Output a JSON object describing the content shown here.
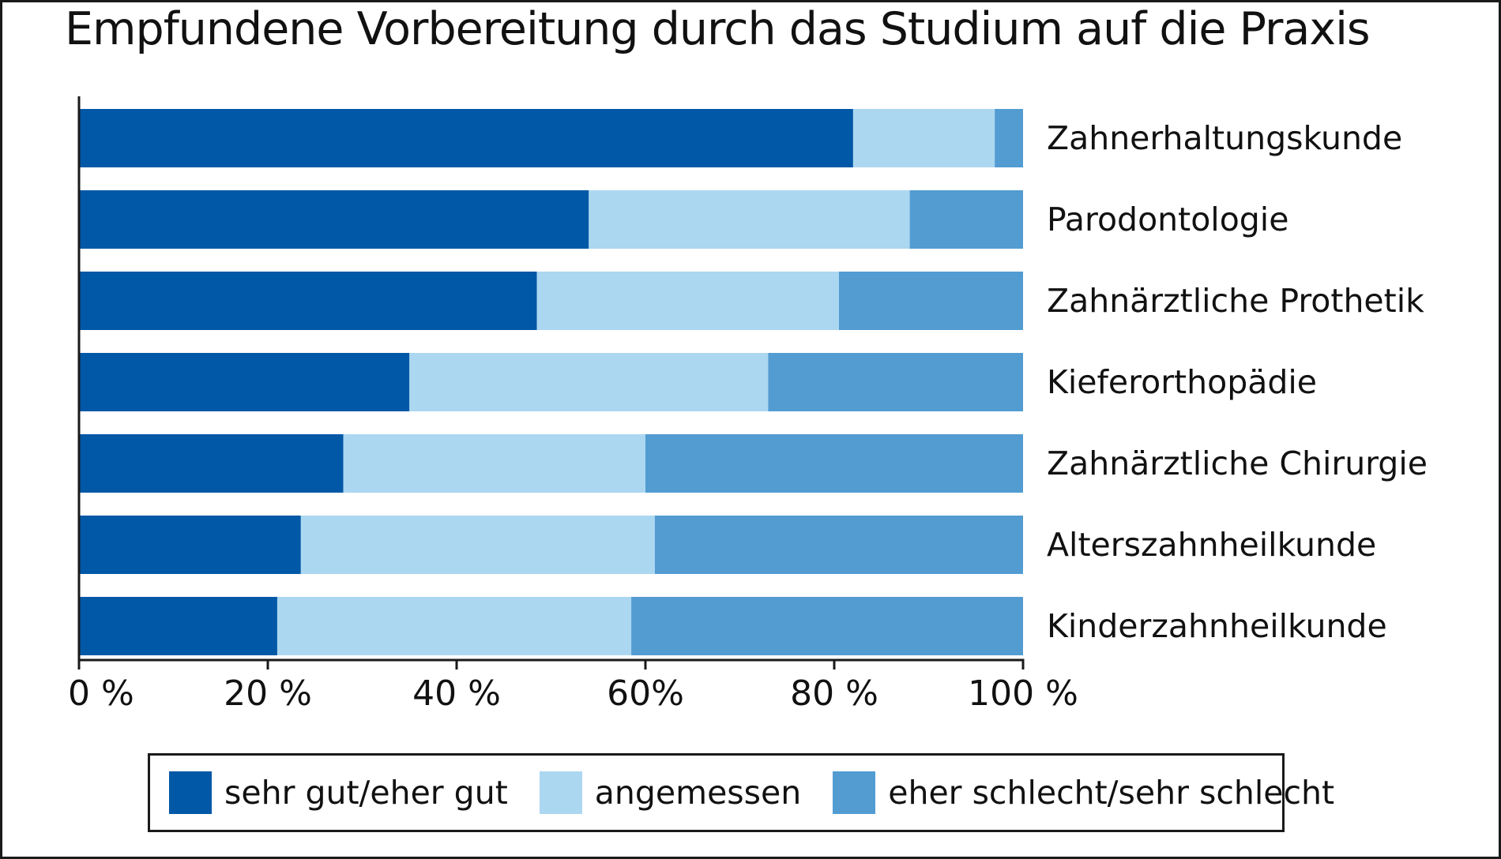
{
  "chart_data": {
    "type": "bar",
    "orientation": "horizontal",
    "stacked": true,
    "title": "Empfundene Vorbereitung durch das Studium auf die Praxis",
    "xlabel": "",
    "ylabel": "",
    "xlim": [
      0,
      100
    ],
    "categories": [
      "Zahnerhaltungskunde",
      "Parodontologie",
      "Zahnärztliche Prothetik",
      "Kieferorthopädie",
      "Zahnärztliche Chirurgie",
      "Alterszahnheilkunde",
      "Kinderzahnheilkunde"
    ],
    "series": [
      {
        "name": "sehr gut/eher gut",
        "color": "#0158a6",
        "values": [
          82,
          54,
          48.5,
          35,
          28,
          23.5,
          21
        ]
      },
      {
        "name": "angemessen",
        "color": "#acd7f1",
        "values": [
          15,
          34,
          32,
          38,
          32,
          37.5,
          37.5
        ]
      },
      {
        "name": "eher schlecht/sehr schlecht",
        "color": "#529cd2",
        "values": [
          3,
          12,
          19.5,
          27,
          40,
          39,
          41.5
        ]
      }
    ],
    "xticks": [
      0,
      20,
      40,
      60,
      80,
      100
    ],
    "xtick_labels": [
      "0 %",
      "20 %",
      "40 %",
      "60%",
      "80 %",
      "100 %"
    ],
    "grid": false,
    "legend_position": "bottom"
  }
}
